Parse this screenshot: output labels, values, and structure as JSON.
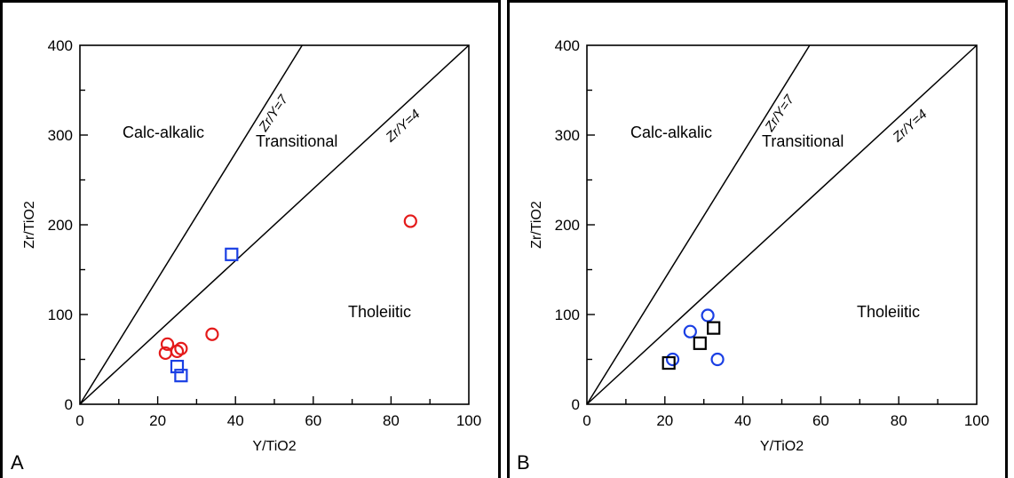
{
  "chart_data": [
    {
      "panel": "A",
      "type": "scatter",
      "xlabel": "Y/TiO2",
      "ylabel": "Zr/TiO2",
      "xlim": [
        0,
        100
      ],
      "ylim": [
        0,
        400
      ],
      "xticks": [
        "0",
        "20",
        "40",
        "60",
        "80",
        "100"
      ],
      "yticks": [
        "0",
        "100",
        "200",
        "300",
        "400"
      ],
      "grid": false,
      "boundary_lines": [
        {
          "label": "Zr/Y=7",
          "slope": 7
        },
        {
          "label": "Zr/Y=4",
          "slope": 4
        }
      ],
      "regions": [
        "Calc-alkalic",
        "Transitional",
        "Tholeiitic"
      ],
      "series": [
        {
          "marker": "circle",
          "color": "#e41a1a",
          "points": [
            [
              22,
              57
            ],
            [
              22.5,
              67
            ],
            [
              25,
              59
            ],
            [
              26,
              62
            ],
            [
              34,
              78
            ],
            [
              85,
              204
            ]
          ]
        },
        {
          "marker": "square",
          "color": "#1a3fe4",
          "points": [
            [
              39,
              167
            ],
            [
              25,
              42
            ],
            [
              26,
              32
            ]
          ]
        }
      ]
    },
    {
      "panel": "B",
      "type": "scatter",
      "xlabel": "Y/TiO2",
      "ylabel": "Zr/TiO2",
      "xlim": [
        0,
        100
      ],
      "ylim": [
        0,
        400
      ],
      "xticks": [
        "0",
        "20",
        "40",
        "60",
        "80",
        "100"
      ],
      "yticks": [
        "0",
        "100",
        "200",
        "300",
        "400"
      ],
      "grid": false,
      "boundary_lines": [
        {
          "label": "Zr/Y=7",
          "slope": 7
        },
        {
          "label": "Zr/Y=4",
          "slope": 4
        }
      ],
      "regions": [
        "Calc-alkalic",
        "Transitional",
        "Tholeiitic"
      ],
      "series": [
        {
          "marker": "circle",
          "color": "#1a3fe4",
          "points": [
            [
              22,
              50
            ],
            [
              26.5,
              81
            ],
            [
              31,
              99
            ],
            [
              33.5,
              50
            ]
          ]
        },
        {
          "marker": "square",
          "color": "#000000",
          "points": [
            [
              21,
              46
            ],
            [
              29,
              68
            ],
            [
              32.5,
              85
            ]
          ]
        }
      ]
    }
  ]
}
